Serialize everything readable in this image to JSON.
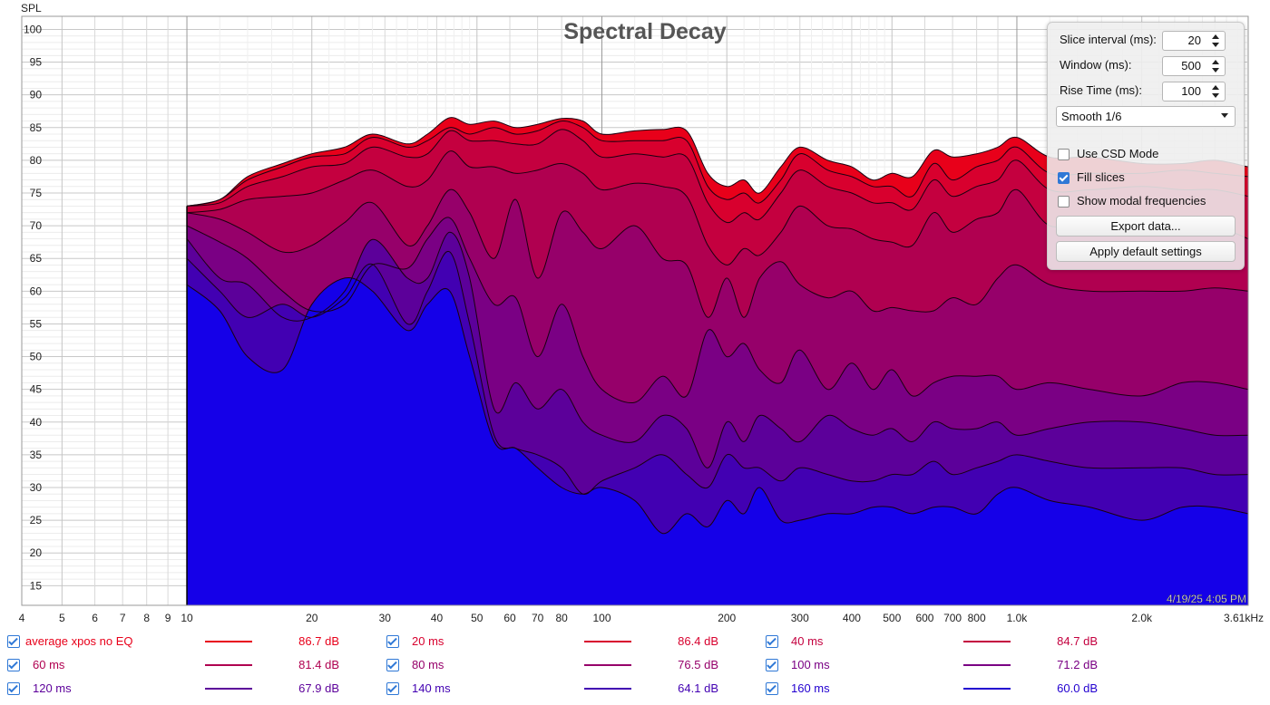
{
  "chart_data": {
    "type": "area",
    "title": "Spectral Decay",
    "ylabel": "SPL",
    "xlabel": "",
    "x_scale": "log",
    "xlim": [
      4,
      3610
    ],
    "ylim": [
      12,
      102
    ],
    "grid": true,
    "y_ticks": [
      "100",
      "95",
      "90",
      "85",
      "80",
      "75",
      "70",
      "65",
      "60",
      "55",
      "50",
      "45",
      "40",
      "35",
      "30",
      "25",
      "20",
      "15"
    ],
    "x_ticks": [
      {
        "f": 4,
        "label": "4"
      },
      {
        "f": 5,
        "label": "5"
      },
      {
        "f": 6,
        "label": "6"
      },
      {
        "f": 7,
        "label": "7"
      },
      {
        "f": 8,
        "label": "8"
      },
      {
        "f": 9,
        "label": "9"
      },
      {
        "f": 10,
        "label": "10"
      },
      {
        "f": 20,
        "label": "20"
      },
      {
        "f": 30,
        "label": "30"
      },
      {
        "f": 40,
        "label": "40"
      },
      {
        "f": 50,
        "label": "50"
      },
      {
        "f": 60,
        "label": "60"
      },
      {
        "f": 70,
        "label": "70"
      },
      {
        "f": 80,
        "label": "80"
      },
      {
        "f": 100,
        "label": "100"
      },
      {
        "f": 200,
        "label": "200"
      },
      {
        "f": 300,
        "label": "300"
      },
      {
        "f": 400,
        "label": "400"
      },
      {
        "f": 500,
        "label": "500"
      },
      {
        "f": 600,
        "label": "600"
      },
      {
        "f": 700,
        "label": "700"
      },
      {
        "f": 800,
        "label": "800"
      },
      {
        "f": 1000,
        "label": "1.0k"
      },
      {
        "f": 2000,
        "label": "2.0k"
      },
      {
        "f": 3610,
        "label": "3.61kHz"
      }
    ],
    "x": [
      10,
      12,
      14,
      17,
      20,
      24,
      28,
      34,
      38,
      43,
      48,
      55,
      62,
      70,
      80,
      90,
      100,
      120,
      140,
      160,
      180,
      200,
      220,
      240,
      270,
      300,
      350,
      400,
      450,
      500,
      560,
      630,
      700,
      800,
      900,
      1000,
      1200,
      1500,
      2000,
      2500,
      3000,
      3610
    ],
    "series": [
      {
        "name": "average xpos no EQ",
        "color": "#e8001a",
        "values": [
          73,
          74,
          77.5,
          79.5,
          81,
          82,
          84,
          82.5,
          84,
          86.5,
          85.5,
          86,
          85,
          85.5,
          86.4,
          86,
          84,
          84.5,
          84.7,
          84.5,
          78,
          76,
          77,
          75,
          79,
          82,
          80,
          79,
          77,
          78,
          77.5,
          81.5,
          80.5,
          81,
          82,
          83.5,
          80.5,
          80.5,
          79.5,
          79.5,
          80,
          79
        ]
      },
      {
        "name": "20 ms",
        "color": "#d8002e",
        "values": [
          73,
          74,
          77,
          79,
          80.5,
          81,
          83.5,
          82,
          83,
          85,
          84,
          85,
          84,
          84.5,
          86,
          85,
          83,
          83,
          83,
          83,
          76,
          74,
          75,
          73.5,
          77,
          81,
          78.5,
          77.5,
          76,
          76,
          74.5,
          79.5,
          77,
          79,
          80,
          82,
          78,
          78,
          78,
          78.5,
          78,
          77.5
        ]
      },
      {
        "name": "40 ms",
        "color": "#c4003f",
        "values": [
          73,
          73.5,
          76,
          77.5,
          79,
          79.5,
          82,
          80.5,
          81,
          84.5,
          83,
          83,
          82.5,
          82.5,
          84.7,
          83,
          80.5,
          81,
          80.5,
          80.5,
          73.5,
          70.5,
          72,
          71,
          75,
          78.5,
          76,
          75,
          73.5,
          73.5,
          72.5,
          77,
          74.5,
          76,
          77,
          80,
          75.5,
          75.5,
          76,
          75.5,
          75.5,
          74.5
        ]
      },
      {
        "name": "60 ms",
        "color": "#b00050",
        "values": [
          72,
          72.5,
          74,
          74.5,
          75,
          77,
          78.5,
          76,
          77,
          81.4,
          79,
          79,
          78,
          78.5,
          79.5,
          78,
          75.5,
          76.5,
          76,
          74.5,
          67,
          64,
          66.5,
          65.5,
          69,
          73,
          70,
          69.5,
          68,
          67.5,
          67,
          72,
          69,
          71,
          72,
          75.5,
          70,
          71,
          70.5,
          70.5,
          70,
          68
        ]
      },
      {
        "name": "80 ms",
        "color": "#96006a",
        "values": [
          72,
          71,
          69,
          66,
          67,
          70.5,
          73.5,
          67,
          70,
          75.5,
          72,
          65,
          74,
          62,
          72,
          69,
          66.5,
          70,
          65,
          64,
          56,
          62,
          56,
          62,
          64.5,
          61,
          59,
          60,
          57,
          57.5,
          57,
          57,
          59,
          58,
          62,
          64,
          61,
          60,
          60,
          60,
          60.5,
          60
        ]
      },
      {
        "name": "100 ms",
        "color": "#7a0084",
        "values": [
          70,
          67.5,
          65,
          60,
          57,
          58,
          64,
          63.5,
          68,
          71.2,
          65,
          58,
          59,
          50,
          58,
          50,
          45,
          43,
          47,
          44,
          54,
          50,
          52,
          48,
          46,
          51,
          45,
          49,
          45,
          48,
          44,
          46,
          47,
          47,
          47,
          45,
          46,
          45,
          44,
          46,
          46,
          45
        ]
      },
      {
        "name": "120 ms",
        "color": "#5c009a",
        "values": [
          68,
          62,
          61,
          56,
          56,
          60,
          67.9,
          62,
          62,
          69,
          62,
          42,
          46,
          42,
          45,
          40,
          38,
          37,
          41,
          39,
          33,
          40,
          37,
          41,
          39,
          37,
          41,
          39,
          38,
          39,
          37,
          40,
          39,
          39,
          40,
          38,
          39,
          40,
          40,
          39,
          38,
          38
        ]
      },
      {
        "name": "140 ms",
        "color": "#4200b2",
        "values": [
          65,
          60,
          56,
          58,
          56,
          59,
          64.1,
          55,
          60,
          66,
          55,
          38,
          36,
          35,
          33,
          29,
          31,
          33,
          35,
          32,
          30,
          35,
          33,
          33,
          31,
          33,
          32,
          31,
          31,
          32,
          32,
          34,
          32,
          33,
          34,
          35,
          34,
          33,
          33,
          33,
          32,
          32
        ]
      },
      {
        "name": "160 ms",
        "color": "#2200d0",
        "values": [
          61,
          57,
          50,
          48,
          58,
          62,
          60,
          54,
          58,
          60,
          50,
          37,
          36,
          33,
          30,
          29,
          30,
          28,
          23,
          26,
          24,
          28,
          26,
          30,
          25,
          25,
          26,
          26,
          27,
          27,
          26,
          27,
          27,
          26,
          29,
          30,
          28,
          27,
          25,
          27,
          27,
          26
        ]
      }
    ],
    "area_fill_top": "#1500e8"
  },
  "panel": {
    "slice_interval_label": "Slice interval (ms):",
    "slice_interval_value": "20",
    "window_label": "Window (ms):",
    "window_value": "500",
    "rise_time_label": "Rise Time (ms):",
    "rise_time_value": "100",
    "smoothing_value": "Smooth 1/6",
    "use_csd_mode_label": "Use CSD Mode",
    "use_csd_mode_checked": false,
    "fill_slices_label": "Fill slices",
    "fill_slices_checked": true,
    "show_modal_label": "Show modal frequencies",
    "show_modal_checked": false,
    "export_label": "Export data...",
    "apply_defaults_label": "Apply default settings"
  },
  "timestamp": "4/19/25 4:05 PM",
  "legend": [
    {
      "name": "average xpos no EQ",
      "value": "86.7 dB",
      "color": "#e8001a"
    },
    {
      "name": "20 ms",
      "value": "86.4 dB",
      "color": "#d8002e"
    },
    {
      "name": "40 ms",
      "value": "84.7 dB",
      "color": "#c4003f"
    },
    {
      "name": "60 ms",
      "value": "81.4 dB",
      "color": "#b00050"
    },
    {
      "name": "80 ms",
      "value": "76.5 dB",
      "color": "#96006a"
    },
    {
      "name": "100 ms",
      "value": "71.2 dB",
      "color": "#7a0084"
    },
    {
      "name": "120 ms",
      "value": "67.9 dB",
      "color": "#5c009a"
    },
    {
      "name": "140 ms",
      "value": "64.1 dB",
      "color": "#4200b2"
    },
    {
      "name": "160 ms",
      "value": "60.0 dB",
      "color": "#2200d0"
    }
  ]
}
